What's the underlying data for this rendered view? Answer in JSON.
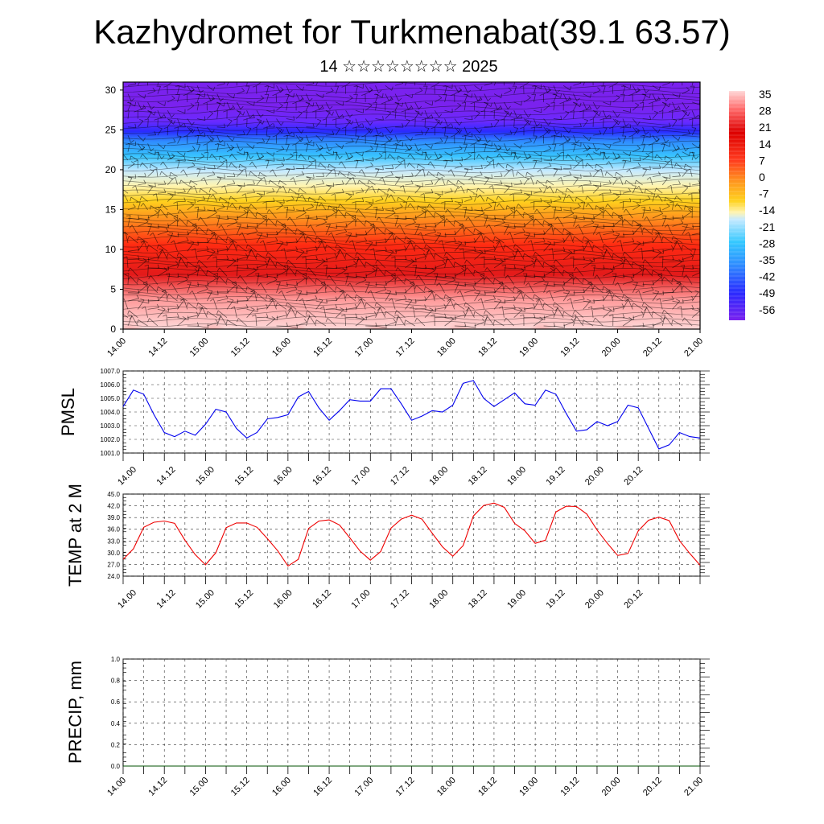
{
  "title": "Kazhydromet for Turkmenabat(39.1 63.57)",
  "subtitle": "14 ☆☆☆☆☆☆☆☆ 2025",
  "x_tick_labels": [
    "14.00",
    "14.12",
    "15.00",
    "15.12",
    "16.00",
    "16.12",
    "17.00",
    "17.12",
    "18.00",
    "18.12",
    "19.00",
    "19.12",
    "20.00",
    "20.12",
    "21.00"
  ],
  "colors": {
    "pmsl_line": "#0000ee",
    "temp_line": "#ee0000",
    "precip_line": "#005000"
  },
  "chart_data": [
    {
      "type": "heatmap",
      "name": "temperature-height-section",
      "y_tick_labels": [
        "0",
        "5",
        "10",
        "15",
        "20",
        "25",
        "30"
      ],
      "ylim": [
        0,
        31
      ],
      "colorbar": {
        "labels": [
          "35",
          "28",
          "21",
          "14",
          "7",
          "0",
          "-7",
          "-14",
          "-21",
          "-28",
          "-35",
          "-42",
          "-49",
          "-56"
        ],
        "range": [
          -60,
          40
        ],
        "palette": [
          "#7a22ee",
          "#2a2aff",
          "#2f8cff",
          "#34c8ff",
          "#c7eaff",
          "#fff4b0",
          "#ffd21e",
          "#ff9a1e",
          "#ff3a1e",
          "#dd0000",
          "#ff8080",
          "#ffd8d8"
        ]
      },
      "overlay": "wind barbs"
    },
    {
      "type": "line",
      "name": "pmsl",
      "ylabel": "PMSL",
      "y_tick_labels": [
        "1001.0",
        "1002.0",
        "1003.0",
        "1004.0",
        "1005.0",
        "1006.0",
        "1007.0"
      ],
      "ylim": [
        1001,
        1007
      ],
      "x": [
        0,
        3,
        6,
        9,
        12,
        15,
        18,
        21,
        24,
        27,
        30,
        33,
        36,
        39,
        42,
        45,
        48,
        51,
        54,
        57,
        60,
        63,
        66,
        69,
        72,
        75,
        78,
        81,
        84,
        87,
        90,
        93,
        96,
        99,
        102,
        105,
        108,
        111,
        114,
        117,
        120,
        123,
        126,
        129,
        132,
        135,
        138,
        141,
        144,
        147,
        150,
        153,
        156,
        159,
        162,
        165,
        168
      ],
      "values": [
        1004.4,
        1005.6,
        1005.3,
        1003.8,
        1002.5,
        1002.2,
        1002.6,
        1002.3,
        1003.1,
        1004.2,
        1004.0,
        1002.8,
        1002.1,
        1002.5,
        1003.5,
        1003.6,
        1003.8,
        1005.1,
        1005.5,
        1004.3,
        1003.4,
        1004.1,
        1004.9,
        1004.8,
        1004.8,
        1005.7,
        1005.7,
        1004.6,
        1003.4,
        1003.7,
        1004.1,
        1004.0,
        1004.5,
        1006.1,
        1006.3,
        1005.0,
        1004.4,
        1004.9,
        1005.4,
        1004.6,
        1004.5,
        1005.6,
        1005.3,
        1003.9,
        1002.6,
        1002.7,
        1003.3,
        1003.0,
        1003.3,
        1004.5,
        1004.3,
        1002.8,
        1001.3,
        1001.6,
        1002.5,
        1002.2,
        1002.1
      ]
    },
    {
      "type": "line",
      "name": "temp-2m",
      "ylabel": "TEMP at 2 M",
      "y_tick_labels": [
        "24.0",
        "27.0",
        "30.0",
        "33.0",
        "36.0",
        "39.0",
        "42.0",
        "45.0"
      ],
      "ylim": [
        24,
        45
      ],
      "x": [
        0,
        3,
        6,
        9,
        12,
        15,
        18,
        21,
        24,
        27,
        30,
        33,
        36,
        39,
        42,
        45,
        48,
        51,
        54,
        57,
        60,
        63,
        66,
        69,
        72,
        75,
        78,
        81,
        84,
        87,
        90,
        93,
        96,
        99,
        102,
        105,
        108,
        111,
        114,
        117,
        120,
        123,
        126,
        129,
        132,
        135,
        138,
        141,
        144,
        147,
        150,
        153,
        156,
        159,
        162,
        165,
        168
      ],
      "values": [
        28.3,
        31.0,
        36.5,
        37.8,
        38.1,
        37.5,
        33.2,
        29.5,
        26.9,
        30.0,
        36.4,
        37.6,
        37.6,
        36.5,
        33.6,
        30.5,
        26.6,
        28.3,
        36.2,
        38.1,
        38.4,
        37.1,
        33.8,
        30.4,
        28.1,
        30.3,
        36.3,
        38.6,
        39.6,
        38.6,
        35.0,
        31.5,
        29.1,
        31.8,
        39.4,
        42.1,
        42.7,
        41.6,
        37.5,
        35.6,
        32.4,
        33.2,
        40.4,
        41.9,
        41.8,
        39.9,
        35.8,
        32.4,
        29.3,
        29.8,
        35.6,
        38.3,
        39.1,
        38.2,
        33.1,
        29.8,
        26.8
      ]
    },
    {
      "type": "line",
      "name": "precip",
      "ylabel": "PRECIP, mm",
      "y_tick_labels": [
        "0.0",
        "0.2",
        "0.4",
        "0.6",
        "0.8",
        "1.0"
      ],
      "ylim": [
        0,
        1
      ],
      "x": [
        0,
        168
      ],
      "values": [
        0,
        0
      ]
    }
  ]
}
